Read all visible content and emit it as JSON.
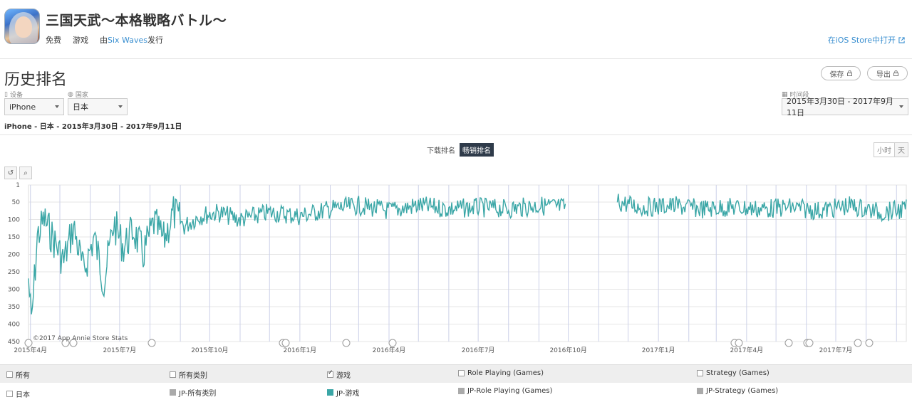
{
  "app": {
    "title": "三国天武～本格戦略バトル～",
    "price": "免费",
    "category": "游戏",
    "publisher_prefix": "由",
    "publisher": "Six Waves",
    "publisher_suffix": "发行",
    "open_in_store": "在iOS Store中打开"
  },
  "section": {
    "title": "历史排名",
    "save_label": "保存",
    "export_label": "导出"
  },
  "filters": {
    "device_label": "设备",
    "device_value": "iPhone",
    "country_label": "国家",
    "country_value": "日本",
    "date_label": "时间段",
    "date_value": "2015年3月30日 - 2017年9月11日",
    "summary": "iPhone - 日本 - 2015年3月30日 - 2017年9月11日"
  },
  "rank_toggle": {
    "download": "下载排名",
    "grossing": "畅销排名"
  },
  "granularity": {
    "hour": "小时",
    "day": "天"
  },
  "chart_data": {
    "type": "line",
    "ylabel": "",
    "y_inverted": true,
    "ylim": [
      1,
      450
    ],
    "y_ticks": [
      "1",
      "50",
      "100",
      "150",
      "200",
      "250",
      "300",
      "350",
      "400",
      "450"
    ],
    "x_tick_labels": [
      "2015年4月",
      "2015年7月",
      "2015年10月",
      "2016年1月",
      "2016年4月",
      "2016年7月",
      "2016年10月",
      "2017年1月",
      "2017年4月",
      "2017年7月"
    ],
    "credit": "©2017 App Annie Store Stats",
    "gap": [
      "2016-09-28",
      "2016-11-20"
    ],
    "series": [
      {
        "name": "JP-游戏",
        "color": "#3aa6a6",
        "anchors": [
          [
            "2015-03-30",
            270
          ],
          [
            "2015-04-02",
            400
          ],
          [
            "2015-04-08",
            150
          ],
          [
            "2015-04-15",
            100
          ],
          [
            "2015-04-25",
            160
          ],
          [
            "2015-05-05",
            220
          ],
          [
            "2015-05-15",
            120
          ],
          [
            "2015-05-25",
            250
          ],
          [
            "2015-06-05",
            150
          ],
          [
            "2015-06-15",
            280
          ],
          [
            "2015-06-25",
            110
          ],
          [
            "2015-07-05",
            180
          ],
          [
            "2015-07-15",
            130
          ],
          [
            "2015-07-25",
            200
          ],
          [
            "2015-08-05",
            110
          ],
          [
            "2015-08-15",
            160
          ],
          [
            "2015-08-25",
            80
          ],
          [
            "2015-09-05",
            120
          ],
          [
            "2015-09-20",
            90
          ],
          [
            "2015-10-10",
            80
          ],
          [
            "2015-11-01",
            100
          ],
          [
            "2015-12-01",
            80
          ],
          [
            "2016-01-01",
            90
          ],
          [
            "2016-02-01",
            70
          ],
          [
            "2016-03-01",
            60
          ],
          [
            "2016-04-01",
            75
          ],
          [
            "2016-05-01",
            60
          ],
          [
            "2016-06-01",
            70
          ],
          [
            "2016-07-01",
            65
          ],
          [
            "2016-08-01",
            70
          ],
          [
            "2016-09-01",
            60
          ],
          [
            "2016-09-27",
            65
          ],
          [
            "2016-11-21",
            50
          ],
          [
            "2016-12-15",
            65
          ],
          [
            "2017-01-15",
            60
          ],
          [
            "2017-02-15",
            70
          ],
          [
            "2017-03-15",
            65
          ],
          [
            "2017-04-15",
            70
          ],
          [
            "2017-05-15",
            65
          ],
          [
            "2017-06-15",
            75
          ],
          [
            "2017-07-15",
            60
          ],
          [
            "2017-08-15",
            80
          ],
          [
            "2017-09-11",
            70
          ]
        ]
      }
    ]
  },
  "legend": {
    "row1": {
      "all": "所有",
      "all_categories": "所有类别",
      "games": "游戏",
      "role_playing": "Role Playing (Games)",
      "strategy": "Strategy (Games)"
    },
    "row2": {
      "country": "日本",
      "jp_all": "JP-所有类别",
      "jp_games": "JP-游戏",
      "jp_role_playing": "JP-Role Playing (Games)",
      "jp_strategy": "JP-Strategy (Games)"
    },
    "colors": {
      "gray": "#aaaaaa",
      "teal": "#3aa6a6"
    }
  }
}
